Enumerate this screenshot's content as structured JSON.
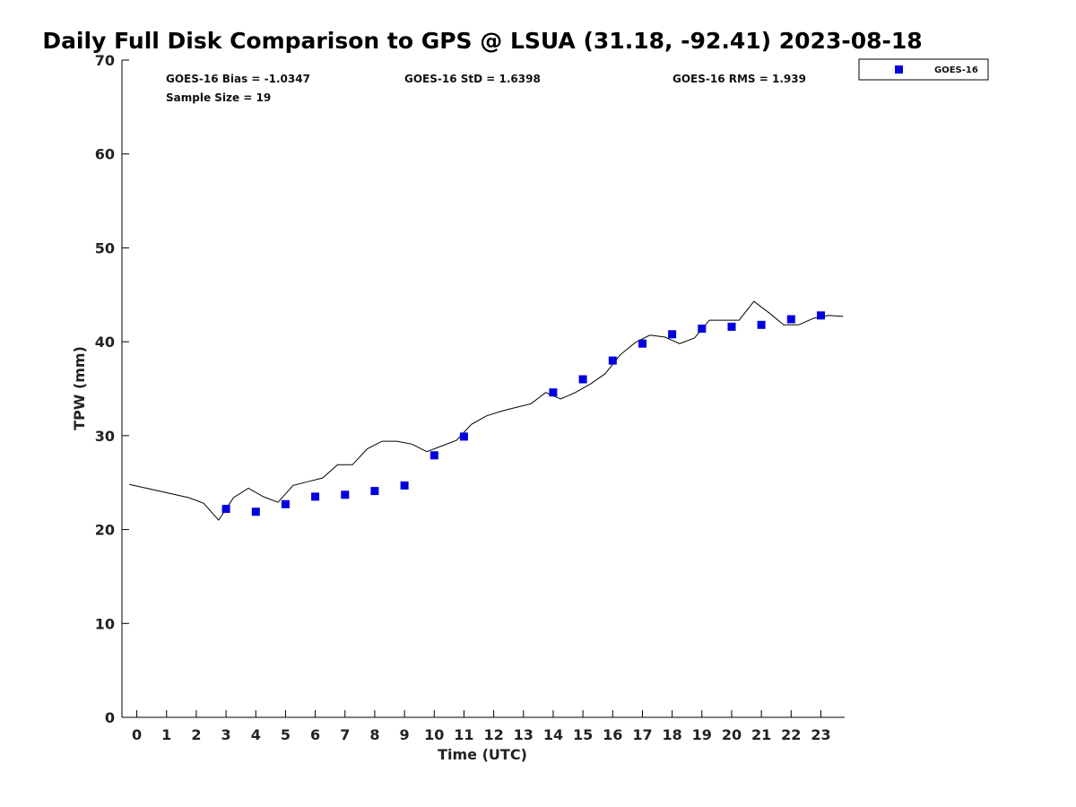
{
  "chart_data": {
    "type": "scatter",
    "title": "Daily Full Disk Comparison to GPS @ LSUA (31.18, -92.41) 2023-08-18",
    "xlabel": "Time (UTC)",
    "ylabel": "TPW (mm)",
    "xlim": [
      -0.5,
      23.8
    ],
    "ylim": [
      0,
      70
    ],
    "xticks": [
      0,
      1,
      2,
      3,
      4,
      5,
      6,
      7,
      8,
      9,
      10,
      11,
      12,
      13,
      14,
      15,
      16,
      17,
      18,
      19,
      20,
      21,
      22,
      23
    ],
    "yticks": [
      0,
      10,
      20,
      30,
      40,
      50,
      60,
      70
    ],
    "grid": false,
    "legend_position": "top-right",
    "stats": {
      "bias": "GOES-16 Bias = -1.0347",
      "std": "GOES-16 StD = 1.6398",
      "rms": "GOES-16 RMS = 1.939",
      "sample_size": "Sample Size = 19"
    },
    "gps_line": {
      "color": "#000000",
      "x": [
        -0.25,
        0.75,
        1.75,
        2.25,
        2.75,
        3.25,
        3.75,
        4.25,
        4.75,
        5.25,
        5.75,
        6.25,
        6.75,
        7.25,
        7.75,
        8.25,
        8.75,
        9.25,
        9.75,
        10.25,
        10.75,
        11.25,
        11.75,
        12.25,
        12.75,
        13.25,
        13.75,
        14.25,
        14.75,
        15.25,
        15.75,
        16.25,
        16.75,
        17.25,
        17.75,
        18.25,
        18.75,
        19.25,
        19.75,
        20.25,
        20.75,
        21.25,
        21.75,
        22.25,
        22.75,
        23.25,
        23.75
      ],
      "y": [
        24.8,
        24.1,
        23.4,
        22.8,
        21.0,
        23.4,
        24.4,
        23.5,
        22.9,
        24.7,
        25.1,
        25.5,
        26.9,
        26.9,
        28.6,
        29.4,
        29.4,
        29.1,
        28.3,
        28.9,
        29.5,
        31.2,
        32.1,
        32.6,
        33.0,
        33.4,
        34.6,
        33.9,
        34.6,
        35.5,
        36.6,
        38.6,
        39.9,
        40.7,
        40.5,
        39.8,
        40.4,
        42.3,
        42.3,
        42.3,
        44.3,
        43.1,
        41.8,
        41.8,
        42.5,
        42.8,
        42.7
      ]
    },
    "series": [
      {
        "name": "GOES-16",
        "color": "#0000dd",
        "x": [
          3,
          4,
          5,
          6,
          7,
          8,
          9,
          10,
          11,
          14,
          15,
          16,
          17,
          18,
          19,
          20,
          21,
          22,
          23
        ],
        "y": [
          22.2,
          21.9,
          22.7,
          23.5,
          23.7,
          24.1,
          24.7,
          27.9,
          29.9,
          34.6,
          36.0,
          38.0,
          39.8,
          40.8,
          41.4,
          41.6,
          41.8,
          42.4,
          42.8
        ]
      }
    ]
  }
}
